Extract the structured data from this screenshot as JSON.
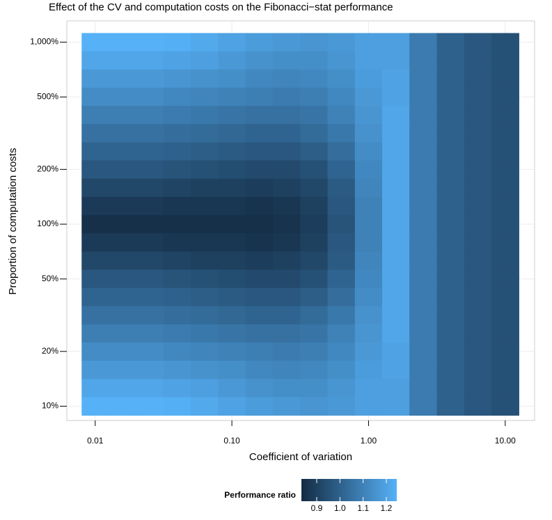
{
  "chart_data": {
    "type": "heatmap",
    "title": "Effect of the CV and computation costs on the Fibonacci−stat performance",
    "x_label": "Coefficient of variation",
    "y_label": "Proportion of computation costs",
    "x": [
      0.01,
      0.0158,
      0.0251,
      0.0398,
      0.0631,
      0.1,
      0.158,
      0.251,
      0.398,
      0.631,
      1,
      1.58,
      2.51,
      3.98,
      6.31,
      10
    ],
    "y": [
      1000,
      794,
      631,
      501,
      398,
      316,
      251,
      200,
      158,
      126,
      100,
      79.4,
      63.1,
      50.1,
      39.8,
      31.6,
      25.1,
      20,
      15.8,
      12.6,
      10
    ],
    "z": [
      [
        1.25,
        1.25,
        1.25,
        1.24,
        1.22,
        1.2,
        1.18,
        1.17,
        1.16,
        1.17,
        1.19,
        1.19,
        1.08,
        1.0,
        0.97,
        0.95
      ],
      [
        1.21,
        1.21,
        1.21,
        1.2,
        1.19,
        1.17,
        1.15,
        1.14,
        1.14,
        1.16,
        1.19,
        1.19,
        1.08,
        1.0,
        0.97,
        0.95
      ],
      [
        1.17,
        1.17,
        1.17,
        1.16,
        1.15,
        1.14,
        1.12,
        1.11,
        1.12,
        1.14,
        1.18,
        1.2,
        1.08,
        1.0,
        0.97,
        0.95
      ],
      [
        1.13,
        1.13,
        1.13,
        1.12,
        1.11,
        1.1,
        1.09,
        1.08,
        1.09,
        1.12,
        1.17,
        1.2,
        1.08,
        1.0,
        0.97,
        0.95
      ],
      [
        1.09,
        1.09,
        1.09,
        1.08,
        1.07,
        1.06,
        1.05,
        1.05,
        1.06,
        1.1,
        1.16,
        1.21,
        1.08,
        1.0,
        0.97,
        0.95
      ],
      [
        1.05,
        1.05,
        1.05,
        1.04,
        1.03,
        1.02,
        1.01,
        1.01,
        1.03,
        1.07,
        1.15,
        1.21,
        1.08,
        1.0,
        0.97,
        0.95
      ],
      [
        1.01,
        1.01,
        1.01,
        1.0,
        0.99,
        0.98,
        0.97,
        0.97,
        0.99,
        1.04,
        1.13,
        1.21,
        1.08,
        1.0,
        0.97,
        0.95
      ],
      [
        0.97,
        0.97,
        0.97,
        0.96,
        0.95,
        0.94,
        0.93,
        0.93,
        0.95,
        1.01,
        1.12,
        1.21,
        1.08,
        1.0,
        0.97,
        0.95
      ],
      [
        0.92,
        0.92,
        0.92,
        0.91,
        0.9,
        0.9,
        0.89,
        0.9,
        0.92,
        0.98,
        1.11,
        1.21,
        1.08,
        1.0,
        0.97,
        0.95
      ],
      [
        0.88,
        0.88,
        0.88,
        0.87,
        0.87,
        0.87,
        0.86,
        0.87,
        0.9,
        0.97,
        1.1,
        1.21,
        1.08,
        1.0,
        0.97,
        0.95
      ],
      [
        0.85,
        0.85,
        0.85,
        0.85,
        0.85,
        0.85,
        0.85,
        0.86,
        0.89,
        0.96,
        1.1,
        1.21,
        1.08,
        1.0,
        0.97,
        0.95
      ],
      [
        0.88,
        0.88,
        0.88,
        0.87,
        0.87,
        0.87,
        0.86,
        0.87,
        0.9,
        0.97,
        1.1,
        1.21,
        1.08,
        1.0,
        0.97,
        0.95
      ],
      [
        0.92,
        0.92,
        0.92,
        0.91,
        0.9,
        0.9,
        0.89,
        0.9,
        0.92,
        0.98,
        1.11,
        1.21,
        1.08,
        1.0,
        0.97,
        0.95
      ],
      [
        0.97,
        0.97,
        0.97,
        0.96,
        0.95,
        0.94,
        0.93,
        0.93,
        0.95,
        1.01,
        1.12,
        1.21,
        1.08,
        1.0,
        0.97,
        0.95
      ],
      [
        1.01,
        1.01,
        1.01,
        1.0,
        0.99,
        0.98,
        0.97,
        0.97,
        0.99,
        1.04,
        1.13,
        1.21,
        1.08,
        1.0,
        0.97,
        0.95
      ],
      [
        1.05,
        1.05,
        1.05,
        1.04,
        1.03,
        1.02,
        1.01,
        1.01,
        1.03,
        1.07,
        1.15,
        1.21,
        1.08,
        1.0,
        0.97,
        0.95
      ],
      [
        1.09,
        1.09,
        1.09,
        1.08,
        1.07,
        1.06,
        1.05,
        1.05,
        1.06,
        1.1,
        1.16,
        1.21,
        1.08,
        1.0,
        0.97,
        0.95
      ],
      [
        1.13,
        1.13,
        1.13,
        1.12,
        1.11,
        1.1,
        1.09,
        1.08,
        1.09,
        1.12,
        1.17,
        1.2,
        1.08,
        1.0,
        0.97,
        0.95
      ],
      [
        1.17,
        1.17,
        1.17,
        1.16,
        1.15,
        1.14,
        1.12,
        1.11,
        1.12,
        1.14,
        1.18,
        1.2,
        1.08,
        1.0,
        0.97,
        0.95
      ],
      [
        1.21,
        1.21,
        1.21,
        1.2,
        1.19,
        1.17,
        1.15,
        1.14,
        1.14,
        1.16,
        1.19,
        1.19,
        1.08,
        1.0,
        0.97,
        0.95
      ],
      [
        1.25,
        1.25,
        1.25,
        1.24,
        1.22,
        1.2,
        1.18,
        1.17,
        1.16,
        1.17,
        1.19,
        1.19,
        1.08,
        1.0,
        0.97,
        0.95
      ]
    ],
    "xlim": [
      0.0062,
      16.4
    ],
    "ylim": [
      8.35,
      1309
    ],
    "x_log": true,
    "y_log": true,
    "xticks": [
      0.01,
      {
        "value": 0.1,
        "label": "0.10"
      },
      {
        "value": 1,
        "label": "1.00"
      },
      {
        "value": 10,
        "label": "10.00"
      }
    ],
    "yticks": [
      {
        "value": 10,
        "label": "10%"
      },
      {
        "value": 20,
        "label": "20%"
      },
      {
        "value": 50,
        "label": "50%"
      },
      {
        "value": 100,
        "label": "100%"
      },
      {
        "value": 200,
        "label": "200%"
      },
      {
        "value": 500,
        "label": "500%"
      },
      {
        "value": 1000,
        "label": "1,000%"
      }
    ],
    "grid": true,
    "colorbar": {
      "title": "Performance ratio",
      "low_color": "#132B43",
      "high_color": "#56B1F7",
      "lim": [
        0.834,
        1.245
      ],
      "ticks": [
        0.9,
        {
          "value": 1,
          "label": "1.0"
        },
        1.1,
        1.2
      ]
    }
  }
}
